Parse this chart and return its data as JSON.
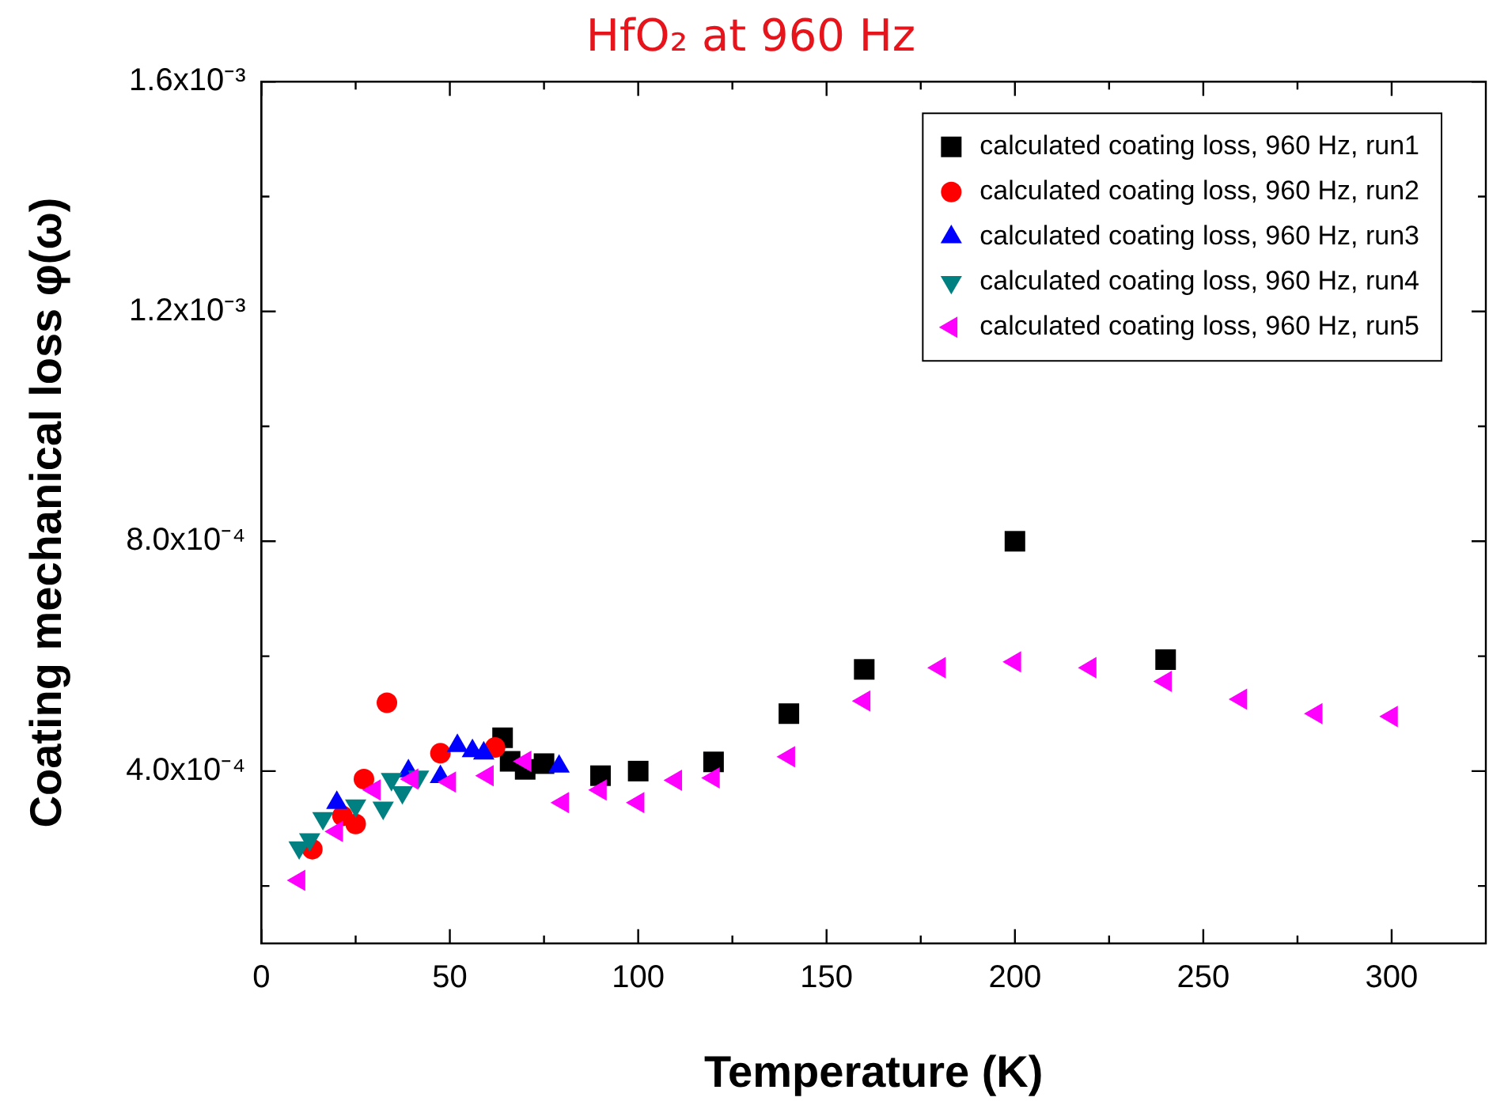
{
  "chart_data": {
    "type": "scatter",
    "title": "HfO₂ at 960 Hz",
    "xlabel": "Temperature (K)",
    "ylabel": "Coating mechanical loss φ(ω)",
    "xlim": [
      0,
      325
    ],
    "xticks": [
      0,
      {
        "value": 25,
        "label": null
      },
      50,
      {
        "value": 75,
        "label": null
      },
      100,
      {
        "value": 125,
        "label": null
      },
      150,
      {
        "value": 175,
        "label": null
      },
      200,
      {
        "value": 225,
        "label": null
      },
      250,
      {
        "value": 275,
        "label": null
      },
      300
    ],
    "ylim": [
      0.0001,
      0.0016
    ],
    "yticks": [
      {
        "value": 0.0002,
        "label": null
      },
      {
        "value": 0.0004,
        "label": "4.0x10⁻⁴"
      },
      {
        "value": 0.0006,
        "label": null
      },
      {
        "value": 0.0008,
        "label": "8.0x10⁻⁴"
      },
      {
        "value": 0.001,
        "label": null
      },
      {
        "value": 0.0012,
        "label": "1.2x10⁻³"
      },
      {
        "value": 0.0014,
        "label": null
      },
      {
        "value": 0.0016,
        "label": "1.6x10⁻³"
      }
    ],
    "grid": false,
    "legend": "top right",
    "series": [
      {
        "name": "calculated coating loss, 960 Hz, run1",
        "color": "#000000",
        "marker": "square",
        "x": [
          64,
          66,
          70,
          75,
          90,
          100,
          120,
          140,
          160,
          200,
          240
        ],
        "values": [
          0.000458,
          0.000417,
          0.000403,
          0.000413,
          0.000392,
          0.0004,
          0.000416,
          0.0005,
          0.000577,
          0.0008,
          0.000594
        ]
      },
      {
        "name": "calculated coating loss, 960 Hz, run2",
        "color": "#ff0000",
        "marker": "circle",
        "x": [
          13.5,
          21.5,
          25,
          27.2,
          33.3,
          47.5,
          52,
          57.5,
          62
        ],
        "values": [
          0.000264,
          0.000322,
          0.000308,
          0.000386,
          0.000519,
          0.000431,
          null,
          null,
          0.000441
        ]
      },
      {
        "name": "calculated coating loss, 960 Hz, run3",
        "color": "#0000ff",
        "marker": "triangle",
        "x": [
          20,
          39,
          47.5,
          52,
          56,
          59,
          79
        ],
        "values": [
          0.000345,
          0.0004,
          0.00039,
          0.000444,
          0.000435,
          0.000431,
          0.000408
        ]
      },
      {
        "name": "calculated coating loss, 960 Hz, run4",
        "color": "#008080",
        "marker": "triangle-down",
        "x": [
          10,
          12.8,
          16.3,
          25,
          32.3,
          34.5,
          37.4,
          41.7
        ],
        "values": [
          0.000267,
          0.000281,
          0.000318,
          0.00034,
          0.000336,
          0.000386,
          0.000363,
          0.00039
        ]
      },
      {
        "name": "calculated coating loss, 960 Hz, run5",
        "color": "#ff00ff",
        "marker": "triangle-left",
        "x": [
          10,
          20,
          30,
          40,
          50,
          60,
          70,
          80,
          90,
          100,
          110,
          120,
          140,
          160,
          180,
          200,
          220,
          240,
          260,
          280,
          300
        ],
        "values": [
          0.00021,
          0.000295,
          0.000367,
          0.000386,
          0.000381,
          0.000392,
          0.000417,
          0.000345,
          0.000367,
          0.000345,
          0.000384,
          0.000388,
          0.000425,
          0.000522,
          0.00058,
          0.00059,
          0.00058,
          0.000556,
          0.000525,
          0.0005,
          0.000495
        ]
      }
    ]
  }
}
